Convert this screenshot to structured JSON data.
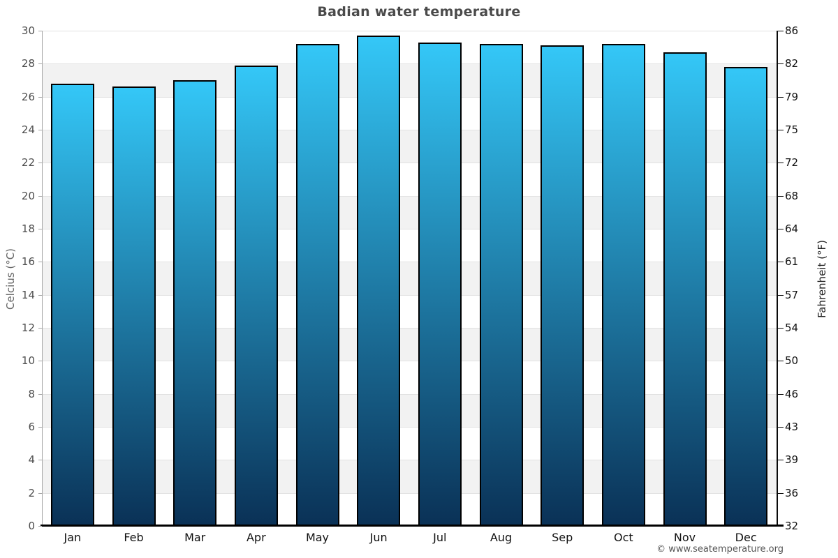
{
  "title": "Badian water temperature",
  "copyright": "© www.seatemperature.org",
  "y_axis_left": {
    "title": "Celcius (°C)"
  },
  "y_axis_right": {
    "title": "Fahrenheit (°F)"
  },
  "chart_data": {
    "type": "bar",
    "title": "Badian water temperature",
    "categories": [
      "Jan",
      "Feb",
      "Mar",
      "Apr",
      "May",
      "Jun",
      "Jul",
      "Aug",
      "Sep",
      "Oct",
      "Nov",
      "Dec"
    ],
    "values": [
      26.8,
      26.6,
      27.0,
      27.9,
      29.2,
      29.7,
      29.3,
      29.2,
      29.1,
      29.2,
      28.7,
      27.8
    ],
    "series_unit": "°C",
    "ylabel": "Celcius (°C)",
    "ylabel_right": "Fahrenheit (°F)",
    "ylim": [
      0,
      30
    ],
    "yticks_celsius": [
      30,
      28,
      26,
      24,
      22,
      20,
      18,
      16,
      14,
      12,
      10,
      8,
      6,
      4,
      2,
      0
    ],
    "yticks_fahrenheit": [
      86,
      82,
      79,
      75,
      72,
      68,
      64,
      61,
      57,
      54,
      50,
      46,
      43,
      39,
      36,
      32
    ],
    "grid": true,
    "legend": "none",
    "colors": {
      "bar_gradient_top": "#34c7f7",
      "bar_gradient_bottom": "#0a3156",
      "bar_border": "#000000",
      "band": "#f2f2f2",
      "gridline": "#e2e2e2",
      "title_text": "#4a4a4a",
      "left_axis_text": "#4d4d4d",
      "right_axis_text": "#111111"
    }
  }
}
